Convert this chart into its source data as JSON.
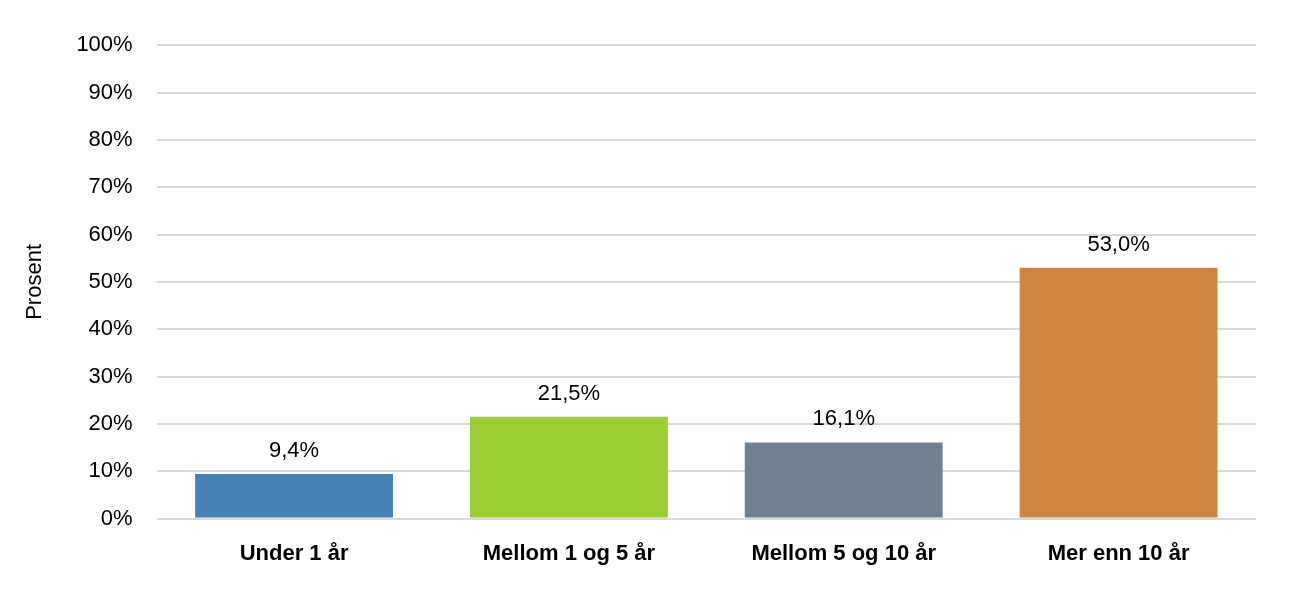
{
  "chart_data": {
    "type": "bar",
    "ylabel": "Prosent",
    "categories": [
      "Under 1 år",
      "Mellom 1 og 5 år",
      "Mellom 5 og 10 år",
      "Mer enn 10 år"
    ],
    "values": [
      9.4,
      21.5,
      16.1,
      53.0
    ],
    "colors": [
      "#4682b4",
      "#9acd32",
      "#708090",
      "#cd853f"
    ],
    "value_labels": [
      "9,4%",
      "21,5%",
      "16,1%",
      "53,0%"
    ],
    "ylim": [
      0,
      100
    ],
    "yticks": [
      {
        "value": 0,
        "label": "0%"
      },
      {
        "value": 10,
        "label": "10%"
      },
      {
        "value": 20,
        "label": "20%"
      },
      {
        "value": 30,
        "label": "30%"
      },
      {
        "value": 40,
        "label": "40%"
      },
      {
        "value": 50,
        "label": "50%"
      },
      {
        "value": 60,
        "label": "60%"
      },
      {
        "value": 70,
        "label": "70%"
      },
      {
        "value": 80,
        "label": "80%"
      },
      {
        "value": 90,
        "label": "90%"
      },
      {
        "value": 100,
        "label": "100%"
      }
    ],
    "grid": "y",
    "legend": false
  }
}
